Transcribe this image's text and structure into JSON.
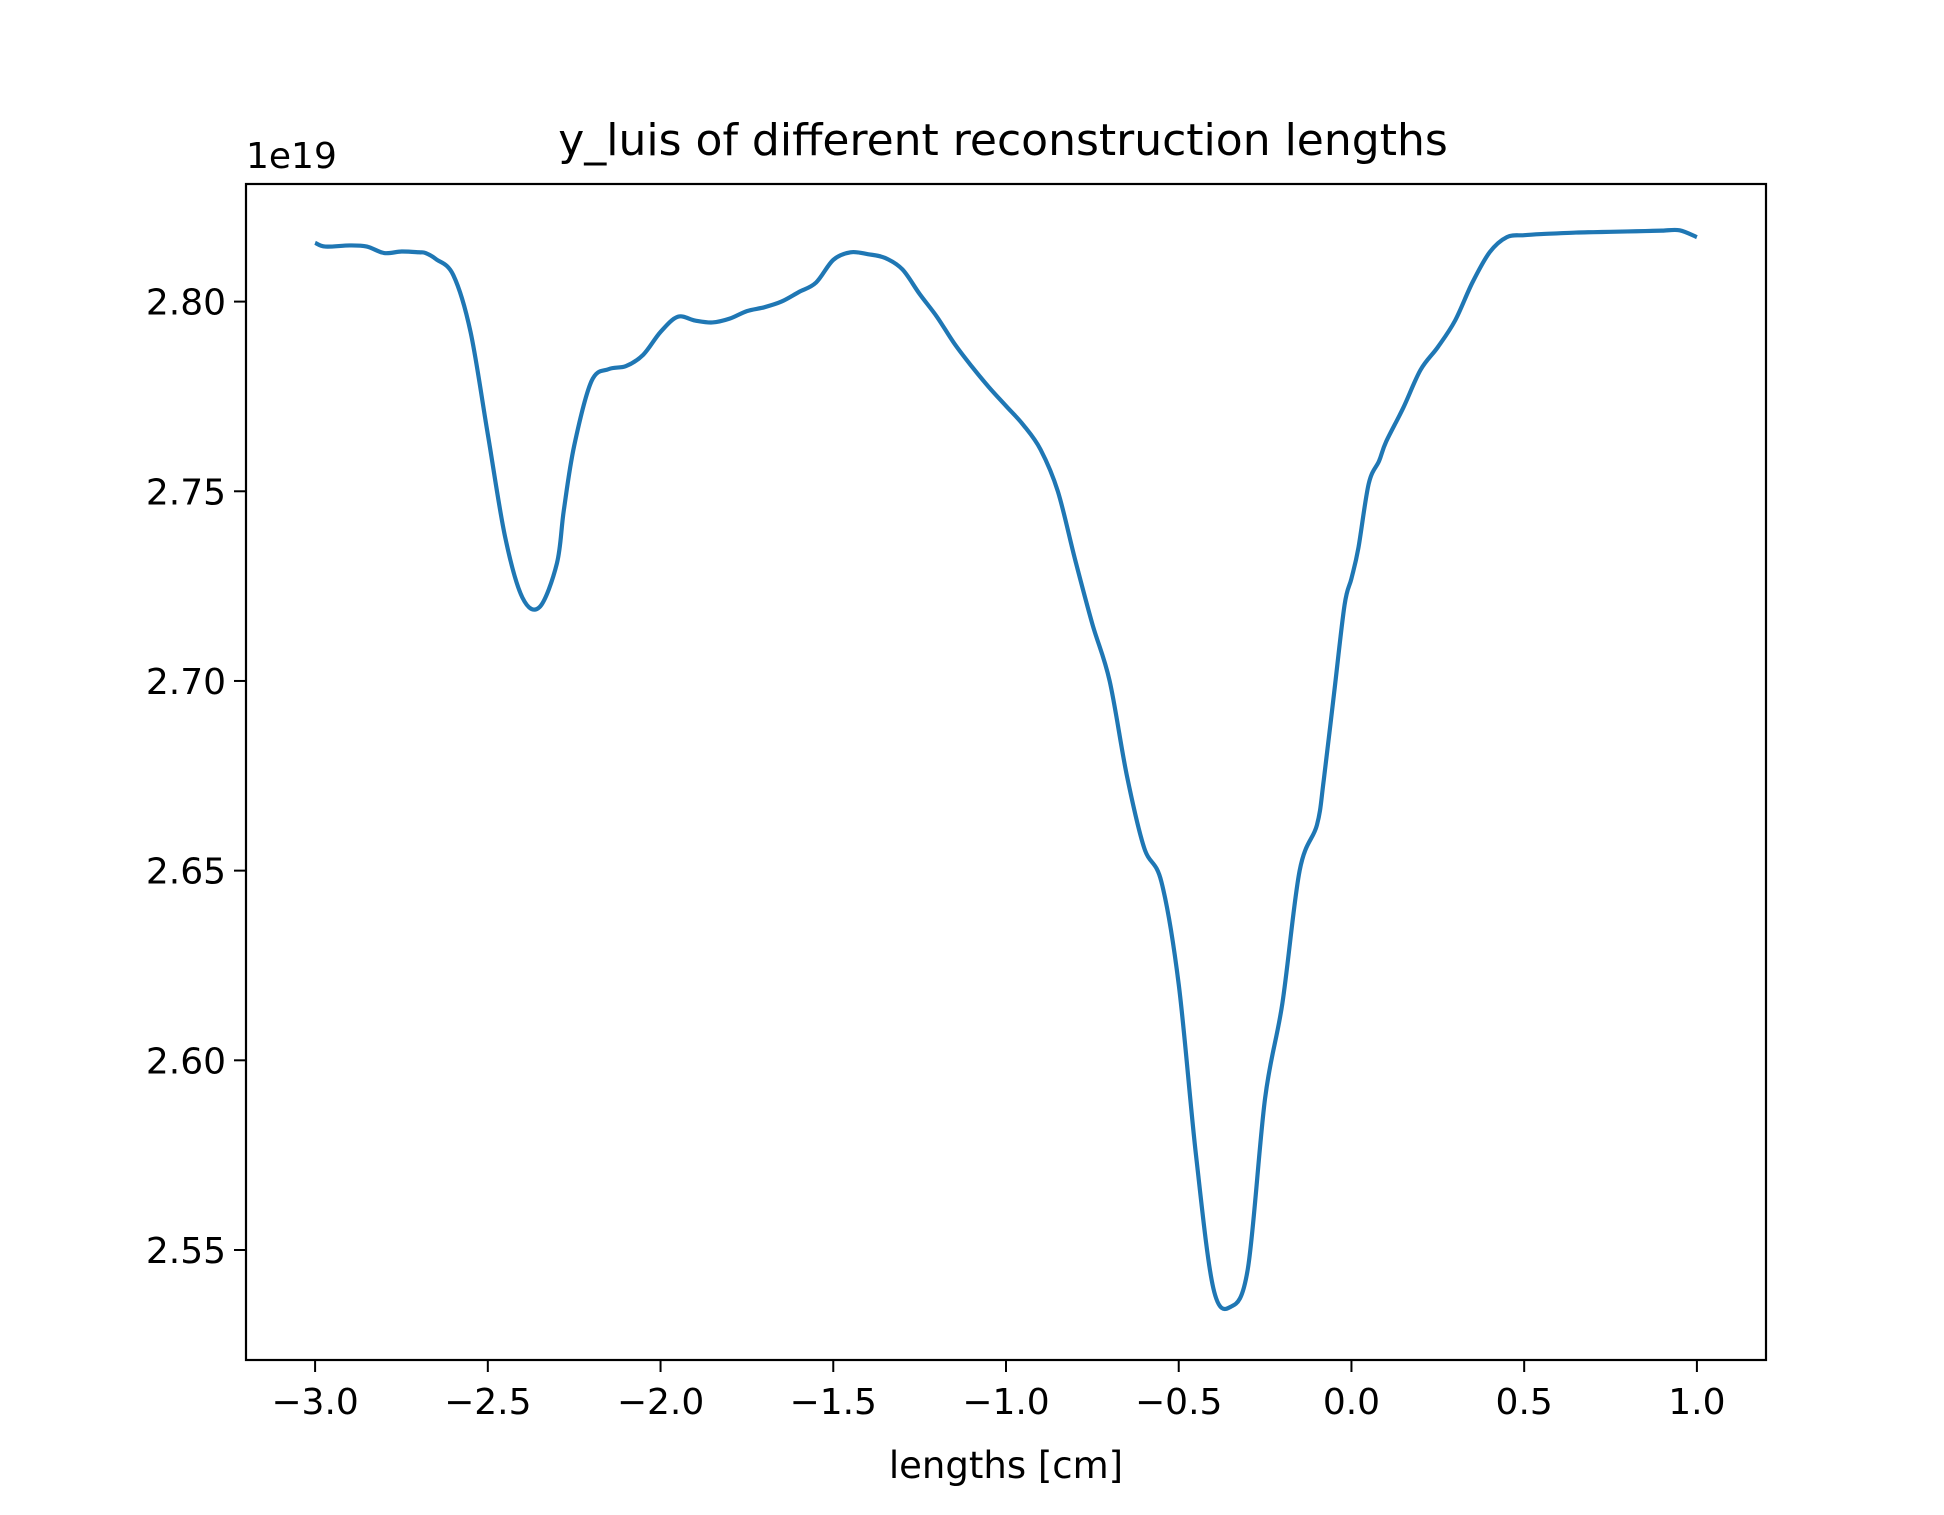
{
  "chart_data": {
    "type": "line",
    "title": "y_luis of different reconstruction lengths",
    "xlabel": "lengths [cm]",
    "ylabel": "",
    "y_offset_label": "1e19",
    "xlim": [
      -3.2,
      1.2
    ],
    "ylim": [
      2.521,
      2.831
    ],
    "x_ticks": [
      -3.0,
      -2.5,
      -2.0,
      -1.5,
      -1.0,
      -0.5,
      0.0,
      0.5,
      1.0
    ],
    "x_tick_labels": [
      "−3.0",
      "−2.5",
      "−2.0",
      "−1.5",
      "−1.0",
      "−0.5",
      "0.0",
      "0.5",
      "1.0"
    ],
    "y_ticks": [
      2.55,
      2.6,
      2.65,
      2.7,
      2.75,
      2.8
    ],
    "y_tick_labels": [
      "2.55",
      "2.60",
      "2.65",
      "2.70",
      "2.75",
      "2.80"
    ],
    "grid": false,
    "legend": "none",
    "color": "#1f77b4",
    "series": [
      {
        "x": [
          -3.0,
          -2.97,
          -2.9,
          -2.85,
          -2.8,
          -2.75,
          -2.7,
          -2.68,
          -2.65,
          -2.6,
          -2.55,
          -2.5,
          -2.45,
          -2.4,
          -2.35,
          -2.3,
          -2.28,
          -2.25,
          -2.2,
          -2.15,
          -2.1,
          -2.05,
          -2.0,
          -1.95,
          -1.9,
          -1.85,
          -1.8,
          -1.75,
          -1.7,
          -1.65,
          -1.6,
          -1.55,
          -1.5,
          -1.45,
          -1.4,
          -1.35,
          -1.3,
          -1.25,
          -1.2,
          -1.15,
          -1.1,
          -1.05,
          -1.0,
          -0.95,
          -0.9,
          -0.85,
          -0.8,
          -0.75,
          -0.7,
          -0.65,
          -0.6,
          -0.55,
          -0.5,
          -0.45,
          -0.4,
          -0.35,
          -0.3,
          -0.25,
          -0.2,
          -0.15,
          -0.1,
          -0.08,
          -0.05,
          -0.02,
          0.0,
          0.02,
          0.05,
          0.08,
          0.1,
          0.15,
          0.2,
          0.25,
          0.3,
          0.35,
          0.4,
          0.45,
          0.5,
          0.55,
          0.6,
          0.65,
          0.7,
          0.75,
          0.8,
          0.85,
          0.9,
          0.95,
          1.0
        ],
        "y": [
          2.8155,
          2.8145,
          2.8148,
          2.8145,
          2.8128,
          2.8132,
          2.813,
          2.8128,
          2.8112,
          2.807,
          2.792,
          2.765,
          2.738,
          2.722,
          2.7195,
          2.731,
          2.745,
          2.762,
          2.779,
          2.7822,
          2.783,
          2.786,
          2.792,
          2.796,
          2.795,
          2.7945,
          2.7955,
          2.7975,
          2.7985,
          2.8,
          2.8025,
          2.805,
          2.811,
          2.813,
          2.8125,
          2.8115,
          2.8085,
          2.802,
          2.796,
          2.789,
          2.783,
          2.7775,
          2.7725,
          2.7675,
          2.761,
          2.75,
          2.732,
          2.715,
          2.7,
          2.675,
          2.656,
          2.647,
          2.62,
          2.575,
          2.54,
          2.535,
          2.545,
          2.59,
          2.615,
          2.65,
          2.662,
          2.674,
          2.697,
          2.72,
          2.727,
          2.735,
          2.752,
          2.758,
          2.763,
          2.772,
          2.782,
          2.788,
          2.795,
          2.805,
          2.813,
          2.817,
          2.8175,
          2.8178,
          2.818,
          2.8182,
          2.8183,
          2.8184,
          2.8185,
          2.8186,
          2.8187,
          2.8188,
          2.817
        ]
      }
    ]
  }
}
